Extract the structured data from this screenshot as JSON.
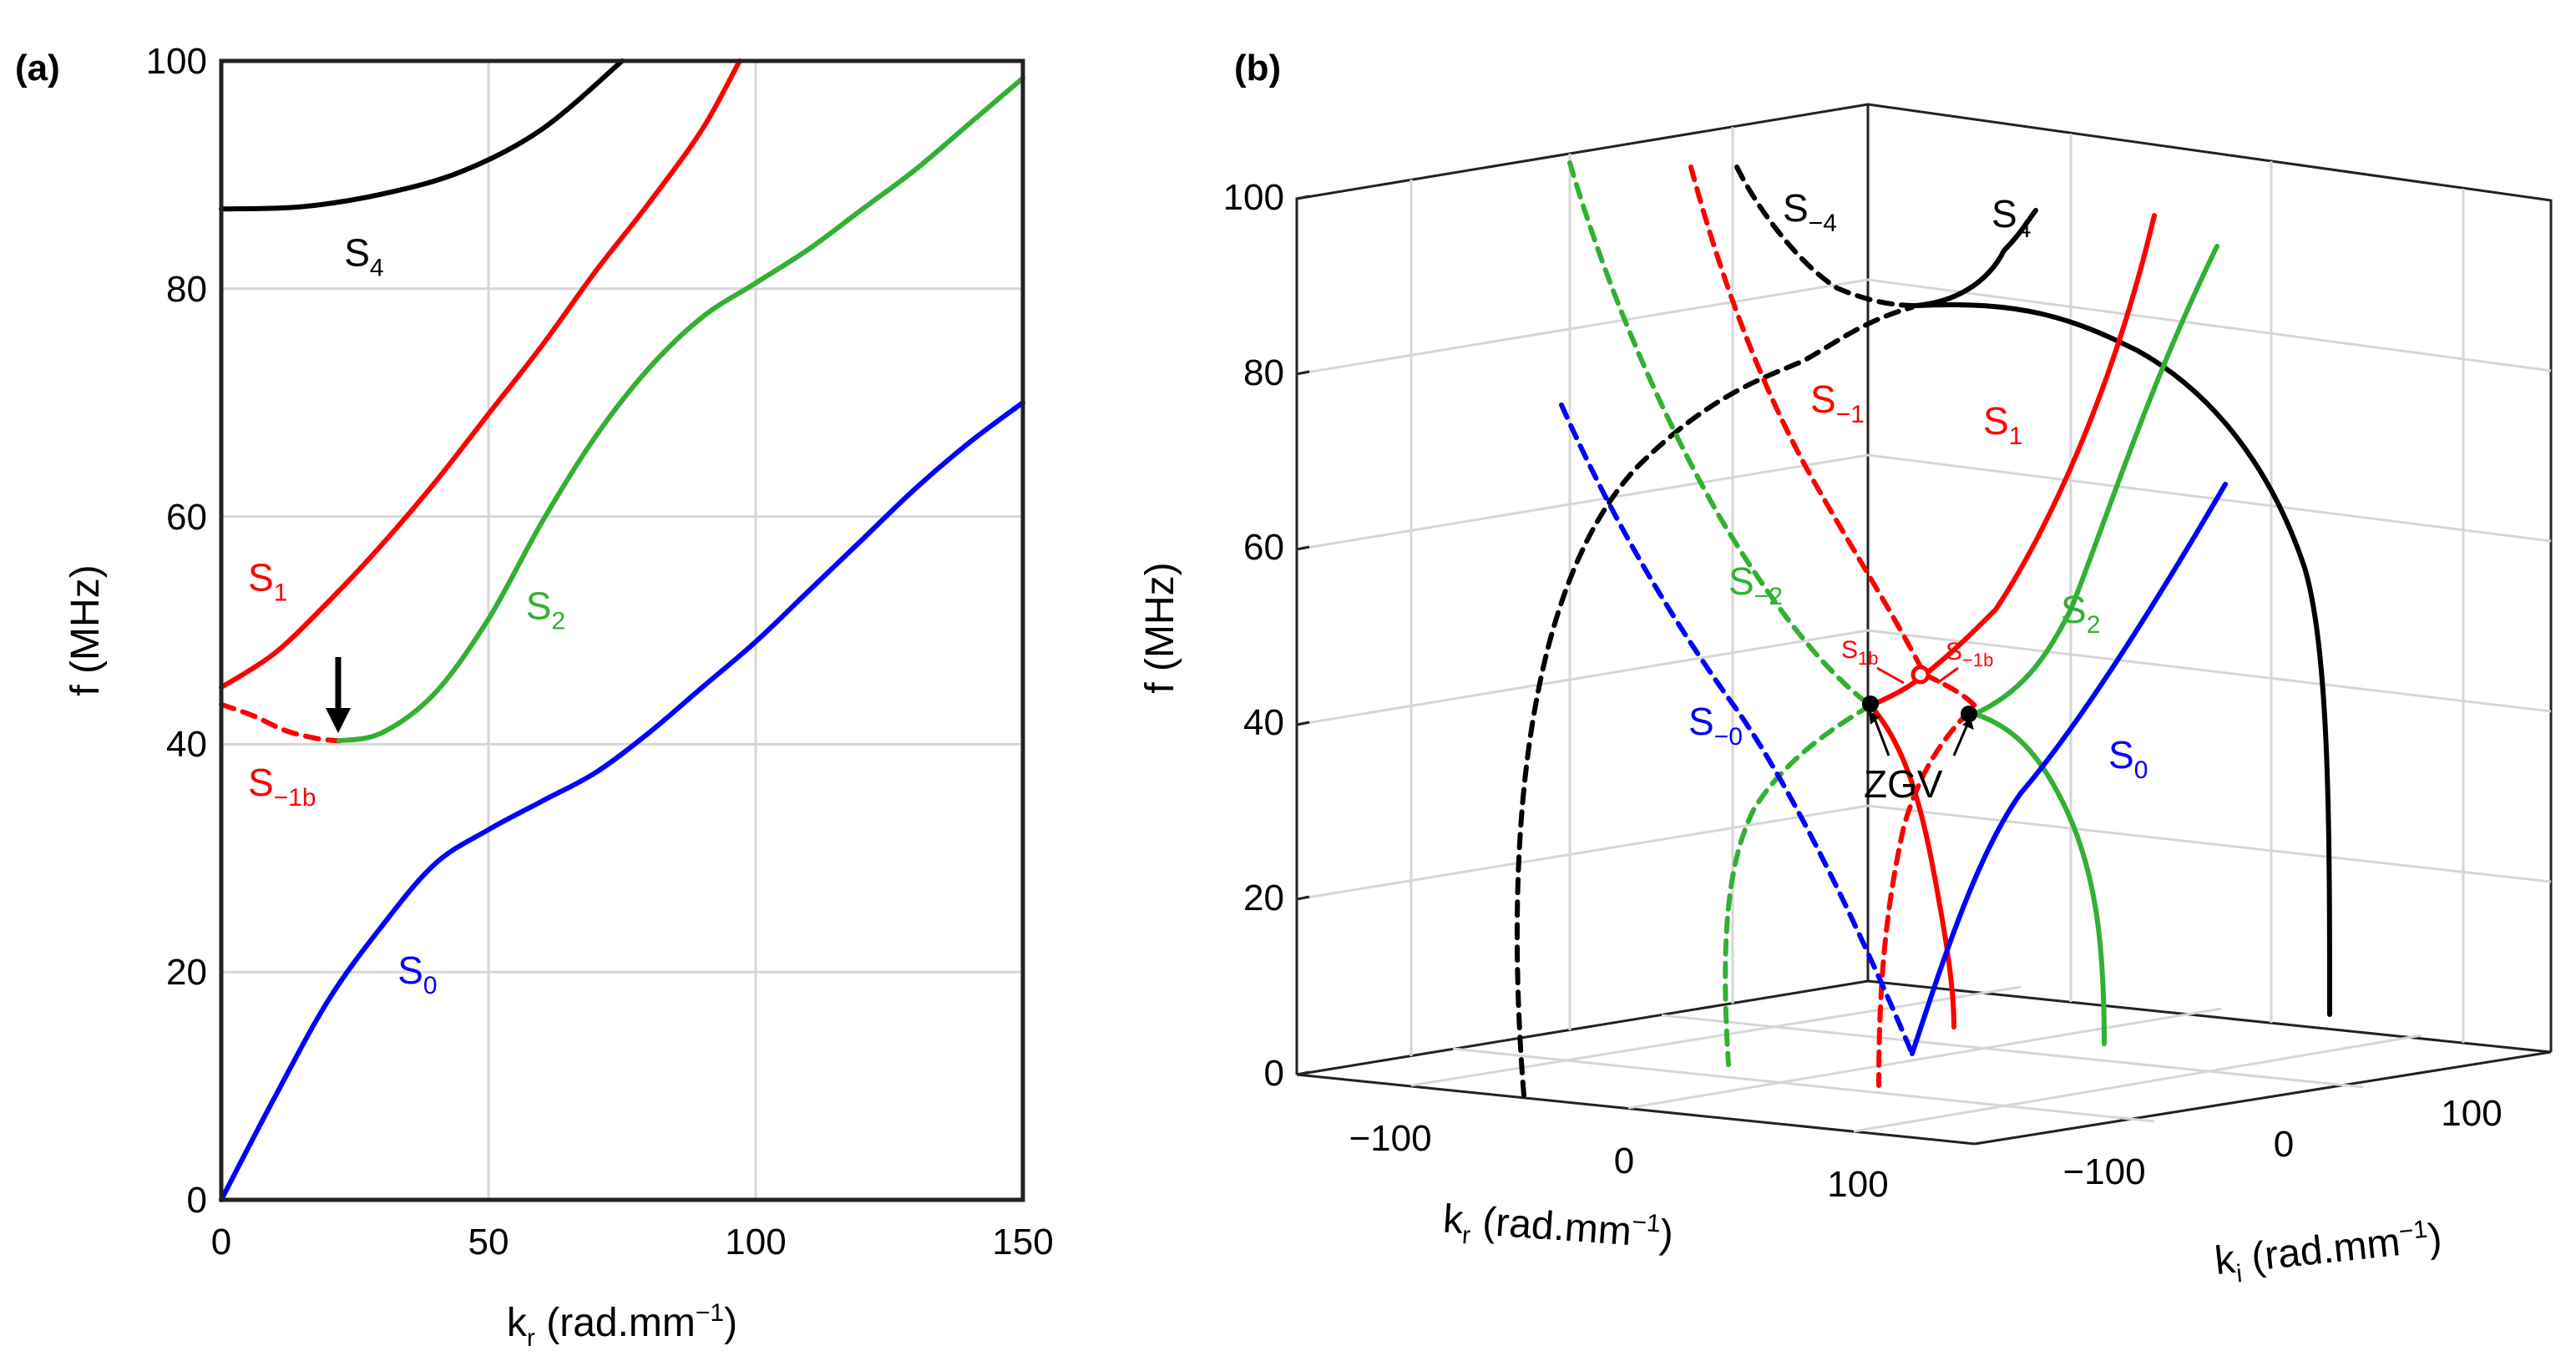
{
  "chart_data": [
    {
      "panel": "(a)",
      "type": "line",
      "xlabel": "k_r (rad.mm^-1)",
      "ylabel": "f (MHz)",
      "xlim": [
        0,
        150
      ],
      "ylim": [
        0,
        100
      ],
      "xticks": [
        0,
        50,
        100,
        150
      ],
      "yticks": [
        0,
        20,
        40,
        60,
        80,
        100
      ],
      "grid": true,
      "series": [
        {
          "name": "S0",
          "color": "#0000ff",
          "dashed": false,
          "x": [
            0,
            10,
            20,
            30,
            40,
            50,
            60,
            70,
            80,
            90,
            100,
            110,
            120,
            130,
            140,
            150
          ],
          "y": [
            0,
            9,
            17.5,
            24,
            29.5,
            32.5,
            35,
            37.5,
            41,
            45,
            49,
            53.5,
            58,
            62.5,
            66.5,
            70
          ]
        },
        {
          "name": "S1",
          "color": "#ff0000",
          "dashed": false,
          "x": [
            0,
            10,
            20,
            30,
            40,
            50,
            60,
            70,
            80,
            90,
            97
          ],
          "y": [
            45,
            48,
            52.5,
            57.5,
            63,
            69,
            75,
            81.5,
            87.5,
            94,
            100
          ]
        },
        {
          "name": "S-1b",
          "color": "#ff0000",
          "dashed": true,
          "x": [
            0,
            6,
            12,
            18,
            22
          ],
          "y": [
            43.5,
            42.5,
            41.2,
            40.5,
            40.3
          ]
        },
        {
          "name": "S2",
          "color": "#33b034",
          "dashed": false,
          "x": [
            22,
            30,
            40,
            50,
            60,
            70,
            80,
            90,
            100,
            110,
            120,
            130,
            140,
            150
          ],
          "y": [
            40.3,
            41,
            44.5,
            51,
            59.5,
            67,
            73,
            77.5,
            80.5,
            83.5,
            87,
            90.5,
            94.5,
            98.5
          ]
        },
        {
          "name": "S4",
          "color": "#000000",
          "dashed": false,
          "x": [
            0,
            15,
            30,
            45,
            60,
            75
          ],
          "y": [
            87,
            87.2,
            88.3,
            90.3,
            94,
            100
          ]
        }
      ],
      "labels": [
        {
          "text": "S",
          "sub": "4",
          "k": 23,
          "f": 82,
          "color": "#000000"
        },
        {
          "text": "S",
          "sub": "1",
          "k": 5,
          "f": 53.5,
          "color": "#ff0000"
        },
        {
          "text": "S",
          "sub": "2",
          "k": 57,
          "f": 51,
          "color": "#33b034"
        },
        {
          "text": "S",
          "sub": "−1b",
          "k": 5,
          "f": 35.5,
          "color": "#ff0000"
        },
        {
          "text": "S",
          "sub": "0",
          "k": 33,
          "f": 19,
          "color": "#0000ff"
        }
      ],
      "annotations": [
        {
          "type": "arrow",
          "at_k": 22,
          "at_f": 40.3,
          "color": "#000000"
        }
      ]
    },
    {
      "panel": "(b)",
      "type": "line3d",
      "xlabel": "k_r (rad.mm^-1)",
      "ylabel": "k_i (rad.mm^-1)",
      "zlabel": "f (MHz)",
      "xticks": [
        -100,
        0,
        100
      ],
      "yticks": [
        -100,
        0,
        100
      ],
      "zticks": [
        0,
        20,
        40,
        60,
        80,
        100
      ],
      "series": [
        {
          "name": "S4",
          "color": "#000000",
          "dashed": false
        },
        {
          "name": "S-4",
          "color": "#000000",
          "dashed": true
        },
        {
          "name": "S1",
          "color": "#ff0000",
          "dashed": false
        },
        {
          "name": "S-1",
          "color": "#ff0000",
          "dashed": true
        },
        {
          "name": "S2",
          "color": "#33b034",
          "dashed": false
        },
        {
          "name": "S-2",
          "color": "#33b034",
          "dashed": true
        },
        {
          "name": "S0",
          "color": "#0000ff",
          "dashed": false
        },
        {
          "name": "S-0",
          "color": "#0000ff",
          "dashed": true
        }
      ],
      "annotations": [
        "ZGV",
        "S1b",
        "S-1b"
      ]
    }
  ],
  "text": {
    "panel_a": "(a)",
    "panel_b": "(b)",
    "kr_label": "k",
    "kr_sub": "r",
    "ki_sub": "i",
    "unit_label": " (rad.mm",
    "unit_exp": "−1",
    "unit_close": ")",
    "f_label": "f (MHz)",
    "zgv": "ZGV",
    "s_letter": "S",
    "sub_4": "4",
    "sub_m4": "−4",
    "sub_1": "1",
    "sub_m1": "−1",
    "sub_2": "2",
    "sub_m2": "−2",
    "sub_0": "0",
    "sub_m0": "−0",
    "sub_1b": "1b",
    "sub_m1b": "−1b",
    "ticks_a_x": [
      "0",
      "50",
      "100",
      "150"
    ],
    "ticks_a_y": [
      "0",
      "20",
      "40",
      "60",
      "80",
      "100"
    ],
    "ticks_b_z": [
      "0",
      "20",
      "40",
      "60",
      "80",
      "100"
    ],
    "ticks_b_kr": [
      "−100",
      "0",
      "100"
    ],
    "ticks_b_ki": [
      "−100",
      "0",
      "100"
    ]
  }
}
